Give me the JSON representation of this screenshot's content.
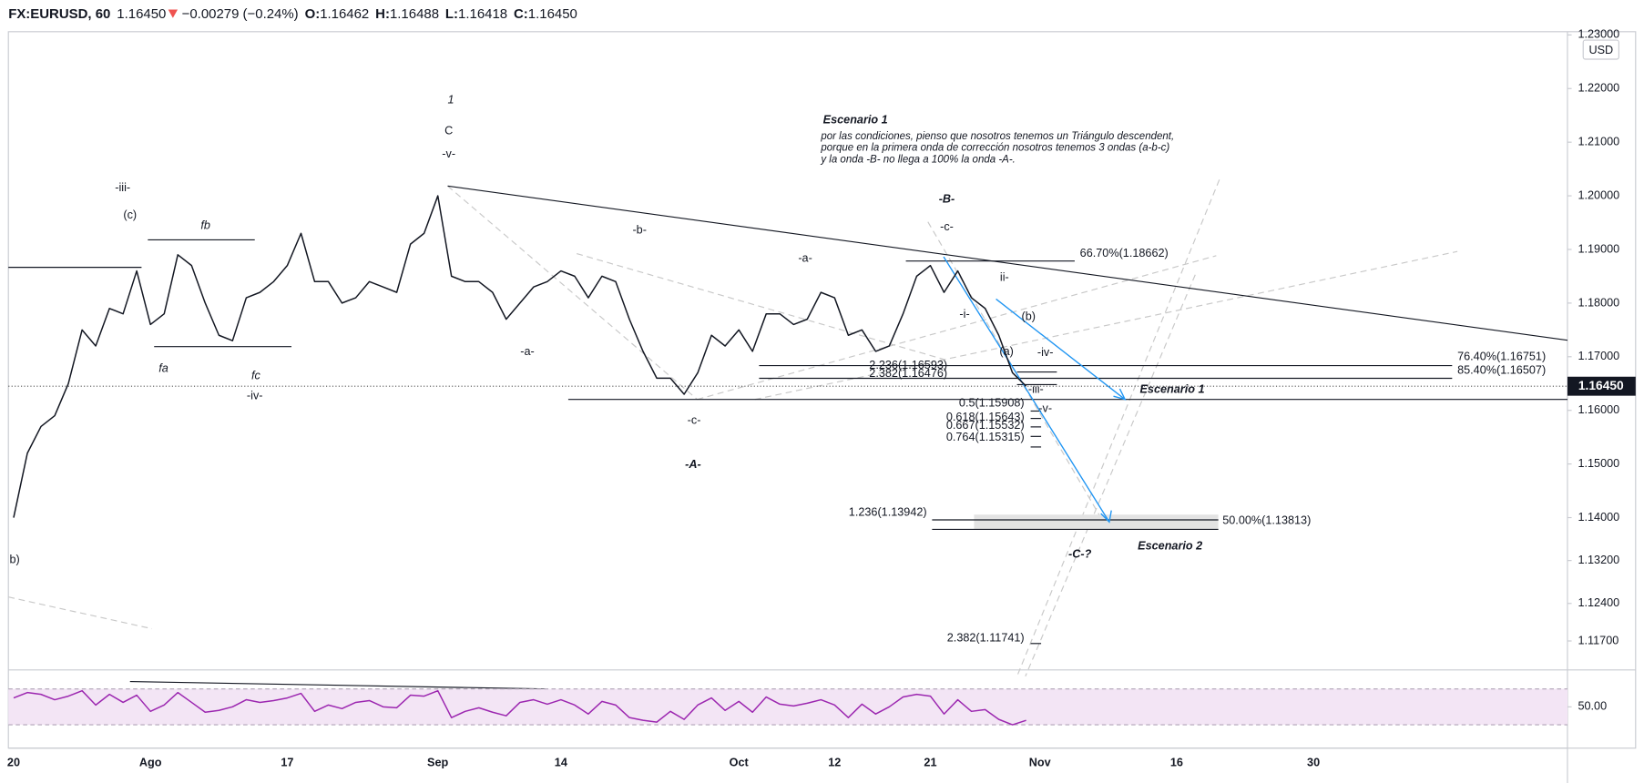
{
  "header": {
    "symbol": "FX:EURUSD, 60",
    "last": "1.16450",
    "change": "−0.00279 (−0.24%)",
    "ohlc": [
      {
        "label": "O:",
        "value": "1.16462"
      },
      {
        "label": "H:",
        "value": "1.16488"
      },
      {
        "label": "L:",
        "value": "1.16418"
      },
      {
        "label": "C:",
        "value": "1.16450"
      }
    ]
  },
  "chart_data": [
    {
      "type": "line",
      "color": "#131722",
      "categories": [
        "20",
        null,
        null,
        null,
        null,
        null,
        null,
        null,
        null,
        null,
        "Ago",
        null,
        null,
        null,
        null,
        null,
        null,
        null,
        null,
        null,
        "17",
        null,
        null,
        null,
        null,
        null,
        null,
        null,
        null,
        null,
        null,
        "Sep",
        null,
        null,
        null,
        null,
        null,
        null,
        null,
        null,
        "14",
        null,
        null,
        null,
        null,
        null,
        null,
        null,
        null,
        null,
        null,
        null,
        null,
        "Oct",
        null,
        null,
        null,
        null,
        null,
        null,
        "12",
        null,
        null,
        null,
        null,
        null,
        null,
        "21",
        null,
        null,
        null,
        null,
        null,
        null,
        null,
        "Nov",
        null,
        null,
        null,
        null,
        null,
        null,
        null,
        null,
        null,
        "16",
        null,
        null,
        null,
        null,
        null,
        null,
        null,
        null,
        null,
        "30",
        null,
        null,
        null,
        null,
        null,
        null,
        null,
        null,
        null,
        null,
        null,
        null,
        null,
        null,
        null,
        null,
        null,
        null
      ],
      "values": [
        1.14,
        1.152,
        1.157,
        1.159,
        1.165,
        1.175,
        1.172,
        1.179,
        1.178,
        1.186,
        1.176,
        1.178,
        1.189,
        1.187,
        1.18,
        1.174,
        1.173,
        1.181,
        1.182,
        1.184,
        1.187,
        1.193,
        1.184,
        1.184,
        1.18,
        1.181,
        1.184,
        1.183,
        1.182,
        1.191,
        1.193,
        1.2,
        1.185,
        1.184,
        1.184,
        1.182,
        1.177,
        1.18,
        1.183,
        1.184,
        1.186,
        1.185,
        1.181,
        1.185,
        1.184,
        1.177,
        1.171,
        1.166,
        1.166,
        1.163,
        1.167,
        1.174,
        1.172,
        1.175,
        1.171,
        1.178,
        1.178,
        1.176,
        1.177,
        1.182,
        1.181,
        1.174,
        1.175,
        1.171,
        1.172,
        1.178,
        1.185,
        1.187,
        1.182,
        1.186,
        1.181,
        1.179,
        1.174,
        1.167,
        1.1645,
        null,
        null,
        null,
        null,
        null,
        null,
        null,
        null,
        null,
        null,
        null,
        null,
        null,
        null,
        null,
        null,
        null,
        null,
        null,
        null,
        null,
        null,
        null,
        null,
        null,
        null,
        null,
        null,
        null,
        null,
        null,
        null,
        null,
        null,
        null,
        null,
        null,
        null,
        null
      ],
      "ylim": [
        1.1116,
        1.2306
      ],
      "yticks": [
        {
          "value": 1.23,
          "label": "1.23000"
        },
        {
          "value": 1.22,
          "label": "1.22000"
        },
        {
          "value": 1.21,
          "label": "1.21000"
        },
        {
          "value": 1.2,
          "label": "1.20000"
        },
        {
          "value": 1.19,
          "label": "1.19000"
        },
        {
          "value": 1.18,
          "label": "1.18000"
        },
        {
          "value": 1.17,
          "label": "1.17000"
        },
        {
          "value": 1.16,
          "label": "1.16000"
        },
        {
          "value": 1.15,
          "label": "1.15000"
        },
        {
          "value": 1.14,
          "label": "1.14000"
        },
        {
          "value": 1.132,
          "label": "1.13200"
        },
        {
          "value": 1.124,
          "label": "1.12400"
        },
        {
          "value": 1.117,
          "label": "1.11700"
        }
      ],
      "currency": "USD",
      "last_price": {
        "value": 1.1645,
        "label": "1.16450"
      },
      "annotations": [
        "1",
        "C",
        "-v-",
        "-iii-",
        "(c)",
        "fb",
        "fa",
        "fc",
        "-iv-",
        "-b-",
        "-a-",
        "-a-",
        "-c-",
        "-A-",
        "-B-",
        "-c-",
        "ii-",
        "-i-",
        "(b)",
        "(a)",
        "-iv-",
        "-iii-",
        "-v-",
        "-C-?",
        "Escenario 1",
        "por las condiciones, pienso que nosotros tenemos un Triángulo descendent,",
        "porque en la primera onda de corrección nosotros tenemos 3 ondas (a-b-c)",
        "y la onda -B- no llega a 100% la onda -A-.",
        "Escenario 1",
        "Escenario 2",
        "b)",
        "66.70%(1.18662)",
        "76.40%(1.16751)",
        "85.40%(1.16507)",
        "2.236(1.16593)",
        "2.382(1.16476)",
        "0.5(1.15908)",
        "0.618(1.15643)",
        "0.667(1.15532)",
        "0.764(1.15315)",
        "1.236(1.13942)",
        "50.00%(1.13813)",
        "2.382(1.11741)"
      ]
    },
    {
      "type": "line",
      "color": "#9c27b0",
      "values": [
        60,
        66,
        64,
        58,
        62,
        68,
        52,
        64,
        55,
        63,
        45,
        52,
        66,
        55,
        44,
        46,
        50,
        58,
        55,
        57,
        60,
        65,
        45,
        52,
        48,
        55,
        57,
        50,
        49,
        63,
        62,
        68,
        38,
        45,
        49,
        44,
        40,
        55,
        58,
        53,
        58,
        52,
        42,
        56,
        52,
        38,
        35,
        33,
        45,
        36,
        52,
        60,
        46,
        56,
        44,
        61,
        53,
        51,
        54,
        58,
        52,
        38,
        53,
        42,
        50,
        61,
        64,
        62,
        42,
        58,
        45,
        47,
        36,
        30,
        35
      ],
      "ylim": [
        4,
        88.8
      ],
      "yticks": [
        {
          "value": 50,
          "label": "50.00"
        }
      ],
      "band": [
        30,
        70
      ]
    }
  ]
}
